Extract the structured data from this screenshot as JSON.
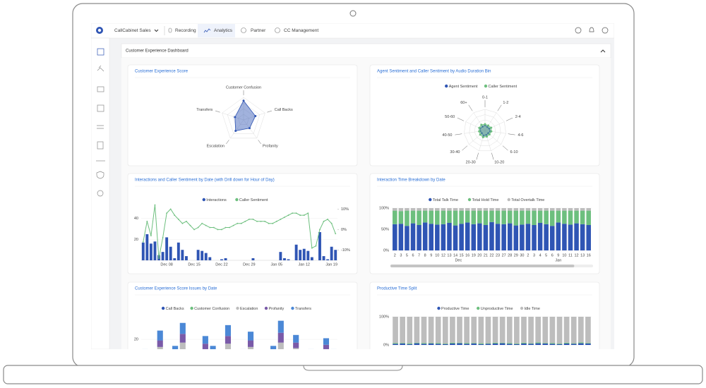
{
  "nav": {
    "app": "CallCabinet Sales",
    "tabs": [
      "Recording",
      "Analytics",
      "Partner",
      "CC Management"
    ]
  },
  "dashboard_title": "Customer Experience Dashboard",
  "chart_data": [
    {
      "type": "radar",
      "title": "Customer Experience Score",
      "categories": [
        "Customer Confusion",
        "Call Backs",
        "Profanity",
        "Escalation",
        "Transfers"
      ],
      "values": [
        85,
        55,
        45,
        60,
        40
      ],
      "color": "#2f55b4",
      "rlim": [
        0,
        100
      ]
    },
    {
      "type": "radar",
      "title": "Agent Sentiment and Caller Sentiment by Audio Duration Bin",
      "categories": [
        "0-1",
        "1-2",
        "2-4",
        "4-6",
        "6-10",
        "10-20",
        "20-30",
        "30-40",
        "40-50",
        "50-60",
        "60+"
      ],
      "series": [
        {
          "name": "Agent Sentiment",
          "color": "#2f55b4",
          "values": [
            0.25,
            0.2,
            0.22,
            0.25,
            0.2,
            0.22,
            0.25,
            0.2,
            0.23,
            0.25,
            0.22
          ]
        },
        {
          "name": "Caller Sentiment",
          "color": "#6dbf7e",
          "values": [
            0.3,
            0.28,
            0.32,
            0.3,
            0.28,
            0.3,
            0.33,
            0.3,
            0.28,
            0.3,
            0.32
          ]
        }
      ],
      "rlim": [
        0,
        1
      ]
    },
    {
      "type": "combo",
      "title": "Interactions and Caller Sentiment by Date (with Drill down for Hour of Day)",
      "categories": [
        null,
        null,
        null,
        null,
        null,
        null,
        "Dec 08",
        null,
        null,
        null,
        null,
        null,
        null,
        "Dec 15",
        null,
        null,
        null,
        null,
        null,
        null,
        "Dec 22",
        null,
        null,
        null,
        null,
        null,
        null,
        "Dec 29",
        null,
        null,
        null,
        null,
        null,
        null,
        "Jan 05",
        null,
        null,
        null,
        null,
        null,
        null,
        "Jan 12",
        null,
        null,
        null,
        null,
        null,
        null,
        "Jan 19",
        null
      ],
      "series": [
        {
          "name": "Interactions",
          "type": "bar",
          "color": "#2f55b4",
          "values": [
            17,
            25,
            16,
            18,
            5,
            8,
            22,
            13,
            2,
            17,
            10,
            4,
            0,
            0,
            10,
            9,
            7,
            3,
            0,
            0,
            1,
            2,
            0,
            0,
            0,
            0,
            0,
            0,
            2,
            0,
            0,
            0,
            0,
            0,
            0,
            8,
            2,
            1,
            0,
            15,
            10,
            11,
            9,
            3,
            0,
            27,
            4,
            1,
            13,
            10
          ]
        },
        {
          "name": "Caller Sentiment",
          "type": "line",
          "axis": "y2",
          "color": "#6dbf7e",
          "values": [
            -6,
            4,
            -3,
            12,
            -14,
            -4,
            8,
            10,
            7,
            5,
            3,
            4,
            2,
            0,
            1,
            3,
            2,
            1,
            1,
            0,
            0,
            1,
            1,
            2,
            3,
            3,
            4,
            5,
            5,
            4,
            4,
            4,
            3,
            3,
            4,
            5,
            6,
            7,
            8,
            8,
            7,
            7,
            8,
            -9,
            -8,
            0,
            4,
            5,
            3,
            -2
          ]
        }
      ],
      "ylim": [
        0,
        52
      ],
      "yticks": [
        20,
        40
      ],
      "y2lim": [
        -15,
        11.5
      ],
      "y2ticks": [
        {
          "value": 10,
          "label": "10%"
        },
        {
          "value": 0,
          "label": "0%"
        },
        {
          "value": -10,
          "label": "-10%"
        }
      ]
    },
    {
      "type": "stacked",
      "title": "Interaction Time Breakdown by Date",
      "categories": [
        "2",
        "3",
        "5",
        "6",
        "7",
        "8",
        "9",
        "10",
        "12",
        "13",
        "14",
        "15",
        "16",
        "19",
        "20",
        "21",
        "22",
        "23",
        "27",
        "28",
        "29",
        "30",
        "2",
        "3",
        "4",
        "5",
        "6",
        "9",
        "10",
        "11",
        "12",
        "13",
        "16"
      ],
      "x_group_labels": [
        "Dec",
        "Jan"
      ],
      "series": [
        {
          "name": "Total Talk Time",
          "color": "#2f55b4",
          "values": [
            62,
            63,
            58,
            64,
            60,
            66,
            63,
            61,
            62,
            65,
            59,
            63,
            66,
            62,
            64,
            60,
            67,
            63,
            62,
            64,
            59,
            61,
            63,
            60,
            65,
            62,
            58,
            66,
            63,
            61,
            64,
            62,
            60
          ]
        },
        {
          "name": "Total Hold Time",
          "color": "#6dbf7e",
          "values": [
            32,
            30,
            36,
            30,
            34,
            28,
            31,
            33,
            32,
            29,
            35,
            31,
            28,
            32,
            30,
            34,
            27,
            31,
            32,
            30,
            35,
            33,
            31,
            34,
            29,
            32,
            36,
            28,
            31,
            33,
            30,
            32,
            34
          ]
        },
        {
          "name": "Total Overtalk Time",
          "color": "#bdbdbd",
          "values": [
            6,
            7,
            6,
            6,
            6,
            6,
            6,
            6,
            6,
            6,
            6,
            6,
            6,
            6,
            6,
            6,
            6,
            6,
            6,
            6,
            6,
            6,
            6,
            6,
            6,
            6,
            6,
            6,
            6,
            6,
            6,
            6,
            6
          ]
        }
      ],
      "ylim": [
        0,
        100
      ],
      "yticks": [
        {
          "value": 100,
          "label": "100%"
        },
        {
          "value": 50,
          "label": "50%"
        },
        {
          "value": 0,
          "label": "0%"
        }
      ]
    },
    {
      "type": "stacked",
      "title": "Customer Experience Score Issues by Date",
      "series": [
        {
          "name": "Call Backs",
          "color": "#2f55b4",
          "values": [
            2,
            1,
            3,
            0,
            2,
            4,
            1,
            0,
            3,
            2,
            1,
            5,
            0,
            2,
            3,
            1,
            0,
            2,
            4,
            1,
            3,
            0,
            2,
            1,
            3,
            2
          ]
        },
        {
          "name": "Customer Confusion",
          "color": "#6dbf7e",
          "values": [
            1,
            0,
            2,
            0,
            1,
            3,
            0,
            1,
            2,
            1,
            0,
            2,
            0,
            1,
            2,
            0,
            1,
            0,
            3,
            1,
            2,
            0,
            1,
            0,
            2,
            1
          ]
        },
        {
          "name": "Escalation",
          "color": "#bdbdbd",
          "values": [
            3,
            2,
            8,
            1,
            4,
            10,
            2,
            3,
            6,
            4,
            2,
            9,
            1,
            3,
            8,
            2,
            3,
            4,
            10,
            2,
            7,
            1,
            3,
            2,
            6,
            3
          ]
        },
        {
          "name": "Profanity",
          "color": "#7a5aa8",
          "values": [
            2,
            1,
            6,
            0,
            3,
            8,
            1,
            2,
            5,
            3,
            1,
            7,
            0,
            2,
            6,
            1,
            2,
            3,
            9,
            1,
            5,
            0,
            2,
            1,
            4,
            2
          ]
        },
        {
          "name": "Transfers",
          "color": "#4b88d6",
          "values": [
            3,
            2,
            9,
            1,
            4,
            10,
            2,
            3,
            7,
            4,
            2,
            10,
            1,
            3,
            8,
            2,
            3,
            5,
            11,
            2,
            7,
            1,
            3,
            2,
            6,
            3
          ]
        }
      ],
      "ylim": [
        0,
        40
      ],
      "yticks": [
        20
      ]
    },
    {
      "type": "stacked",
      "title": "Productive Time Split",
      "series": [
        {
          "name": "Productive Time",
          "color": "#2f55b4",
          "values": [
            4,
            5,
            3,
            6,
            4,
            5,
            4,
            3,
            5,
            6,
            4,
            5,
            3,
            4,
            5,
            6,
            4,
            3,
            5,
            4,
            6,
            5,
            4,
            3,
            5,
            4,
            6,
            5
          ]
        },
        {
          "name": "Unproductive Time",
          "color": "#6dbf7e",
          "values": [
            3,
            2,
            3,
            2,
            3,
            2,
            3,
            2,
            3,
            2,
            3,
            2,
            3,
            2,
            3,
            2,
            3,
            2,
            3,
            2,
            3,
            2,
            3,
            2,
            3,
            2,
            3,
            2
          ]
        },
        {
          "name": "Idle Time",
          "color": "#bdbdbd",
          "values": [
            93,
            93,
            94,
            92,
            93,
            93,
            93,
            95,
            92,
            92,
            93,
            93,
            94,
            94,
            92,
            92,
            93,
            95,
            92,
            94,
            91,
            93,
            93,
            95,
            92,
            94,
            91,
            93
          ]
        }
      ],
      "ylim": [
        0,
        100
      ],
      "yticks": [
        {
          "value": 100,
          "label": "100%"
        },
        {
          "value": 0,
          "label": "0%"
        }
      ]
    }
  ]
}
